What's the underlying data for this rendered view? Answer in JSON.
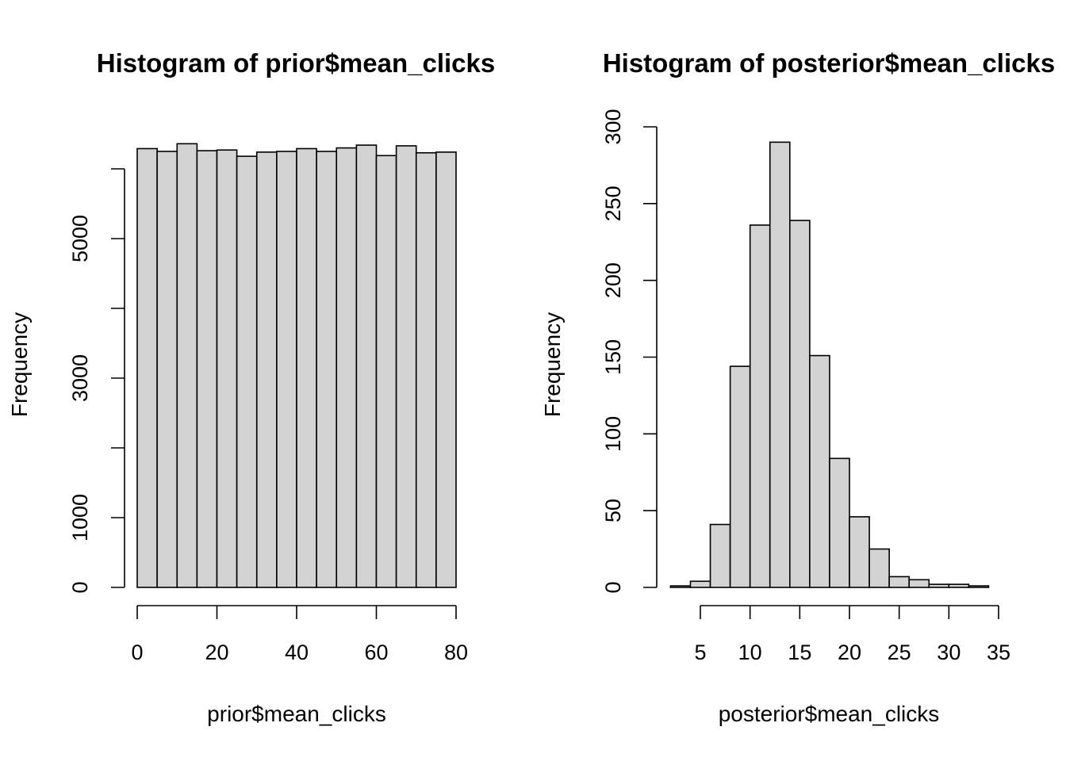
{
  "colors": {
    "bar_fill": "#d3d3d3",
    "bar_stroke": "#000000",
    "background": "#ffffff"
  },
  "chart_data": [
    {
      "type": "bar",
      "title": "Histogram of prior$mean_clicks",
      "xlabel": "prior$mean_clicks",
      "ylabel": "Frequency",
      "bin_edges": [
        0,
        5,
        10,
        15,
        20,
        25,
        30,
        35,
        40,
        45,
        50,
        55,
        60,
        65,
        70,
        75,
        80
      ],
      "values": [
        6290,
        6250,
        6360,
        6260,
        6270,
        6180,
        6240,
        6250,
        6290,
        6250,
        6300,
        6340,
        6190,
        6330,
        6230,
        6240
      ],
      "xlim": [
        0,
        80
      ],
      "ylim": [
        0,
        6000
      ],
      "x_ticks": [
        0,
        20,
        40,
        60,
        80
      ],
      "y_ticks": [
        0,
        1000,
        2000,
        3000,
        4000,
        5000,
        6000
      ],
      "y_tick_labels": [
        "0",
        "1000",
        "",
        "3000",
        "",
        "5000",
        ""
      ],
      "grid": false,
      "legend": "none"
    },
    {
      "type": "bar",
      "title": "Histogram of posterior$mean_clicks",
      "xlabel": "posterior$mean_clicks",
      "ylabel": "Frequency",
      "bin_edges": [
        2,
        4,
        6,
        8,
        10,
        12,
        14,
        16,
        18,
        20,
        22,
        24,
        26,
        28,
        30,
        32,
        34
      ],
      "values": [
        1,
        4,
        41,
        144,
        236,
        290,
        239,
        151,
        84,
        46,
        25,
        7,
        5,
        2,
        2,
        1
      ],
      "xlim": [
        5,
        35
      ],
      "ylim": [
        0,
        300
      ],
      "x_ticks": [
        5,
        10,
        15,
        20,
        25,
        30,
        35
      ],
      "y_ticks": [
        0,
        50,
        100,
        150,
        200,
        250,
        300
      ],
      "y_tick_labels": [
        "0",
        "50",
        "100",
        "150",
        "200",
        "250",
        "300"
      ],
      "grid": false,
      "legend": "none"
    }
  ]
}
